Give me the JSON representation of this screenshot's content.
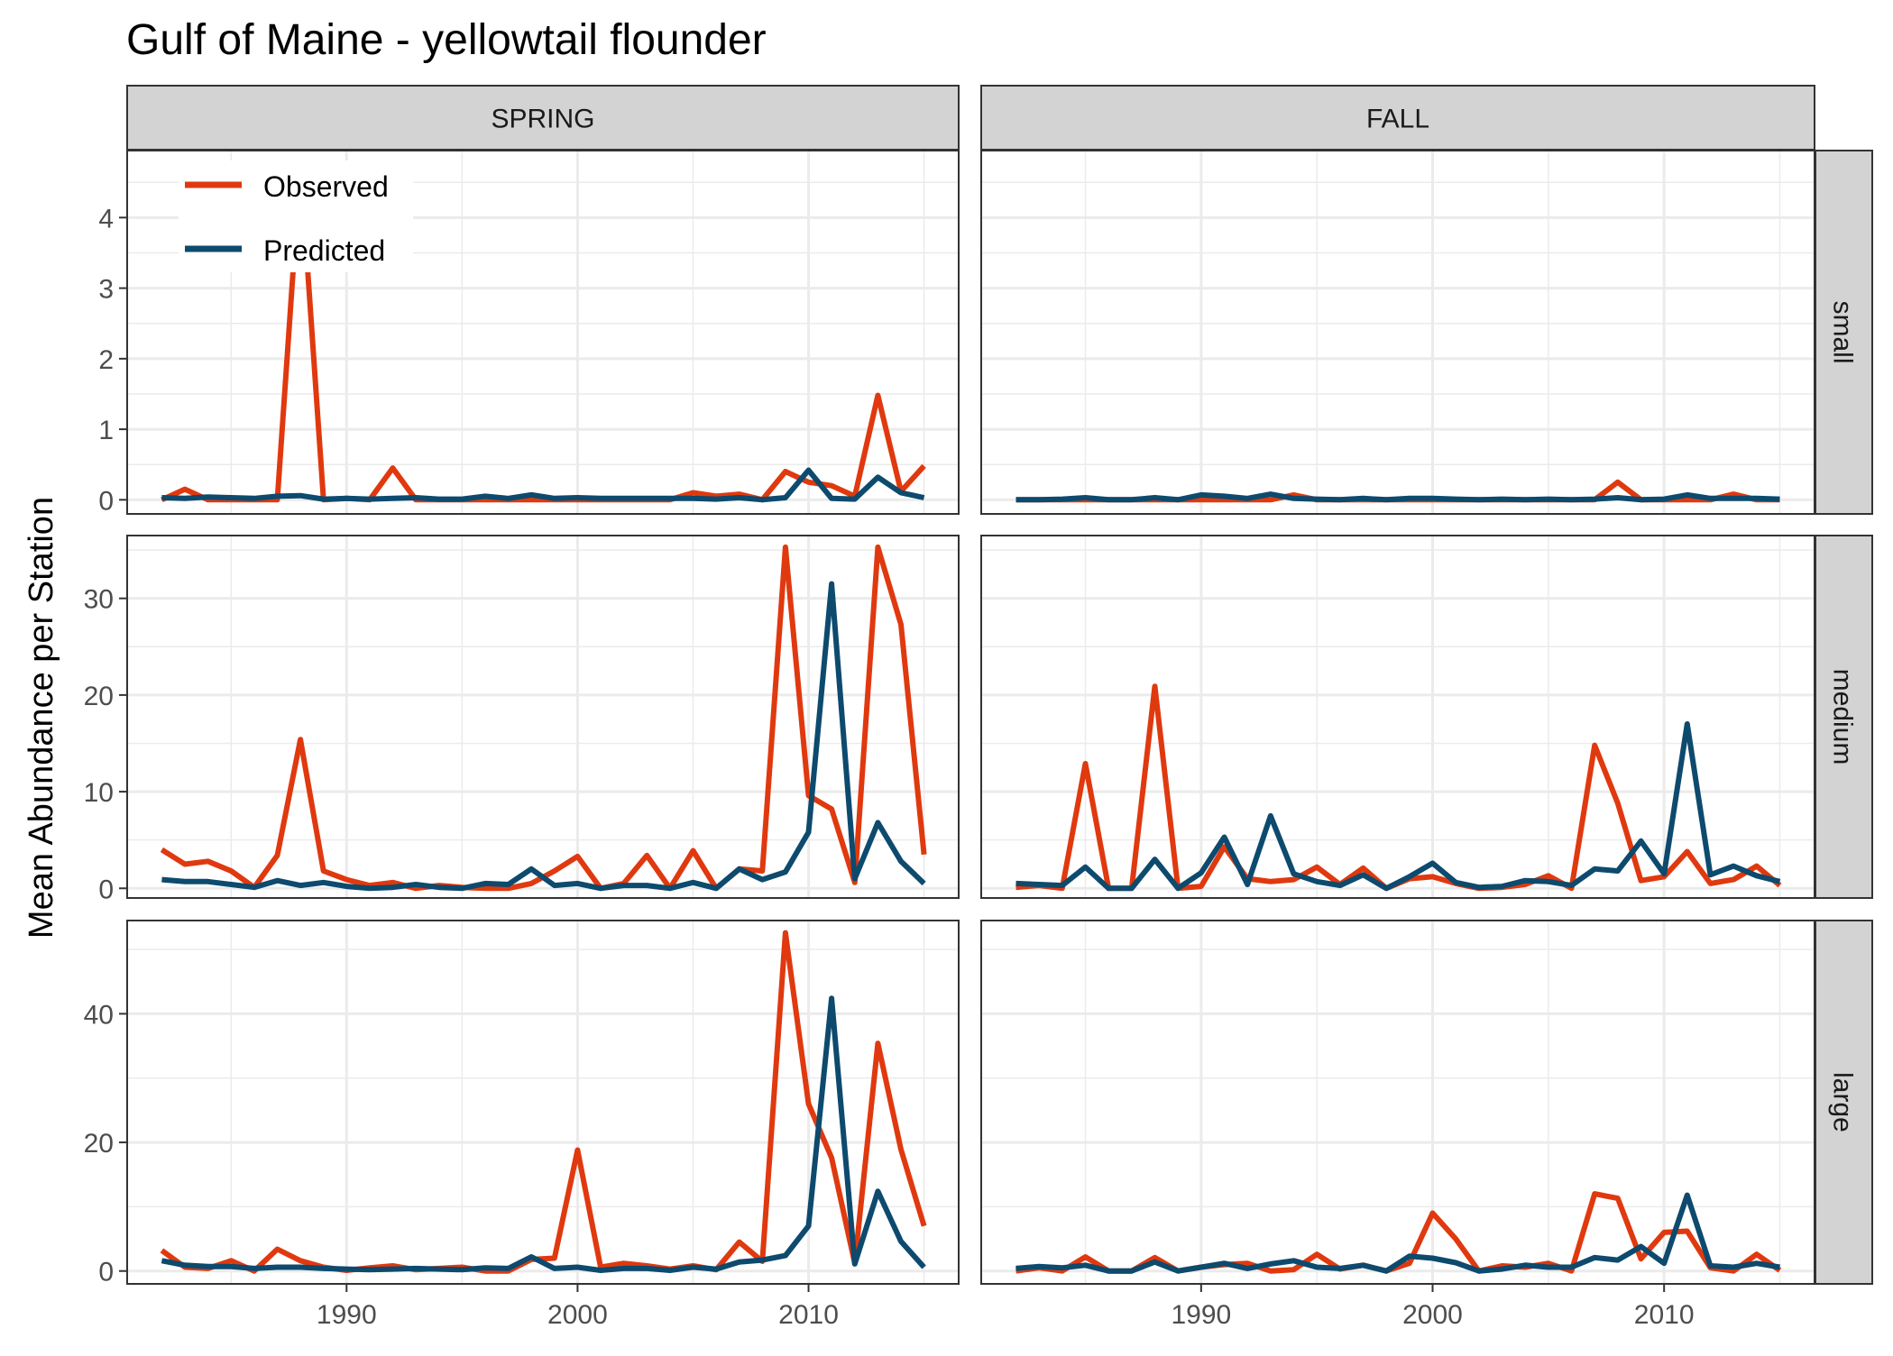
{
  "chart_data": {
    "type": "line",
    "title": "Gulf of Maine - yellowtail flounder",
    "ylabel": "Mean Abundance per Station",
    "xlabel": "",
    "x": [
      1982,
      1983,
      1984,
      1985,
      1986,
      1987,
      1988,
      1989,
      1990,
      1991,
      1992,
      1993,
      1994,
      1995,
      1996,
      1997,
      1998,
      1999,
      2000,
      2001,
      2002,
      2003,
      2004,
      2005,
      2006,
      2007,
      2008,
      2009,
      2010,
      2011,
      2012,
      2013,
      2014,
      2015
    ],
    "xlim": [
      1980.5,
      2016.5
    ],
    "xticks": [
      "1990",
      "2000",
      "2010"
    ],
    "columns": [
      "SPRING",
      "FALL"
    ],
    "rows": [
      "small",
      "medium",
      "large"
    ],
    "grid": true,
    "legend": {
      "position": "top-left inside",
      "entries": [
        "Observed",
        "Predicted"
      ]
    },
    "colors": {
      "Observed": "#e0390f",
      "Predicted": "#0d4a6e",
      "strip": "#d3d3d3",
      "grid": "#ebebeb"
    },
    "ylims": {
      "small": [
        -0.2,
        4.95
      ],
      "medium": [
        -1.0,
        36.5
      ],
      "large": [
        -2.0,
        54.5
      ]
    },
    "yticks": {
      "small": [
        "0",
        "1",
        "2",
        "3",
        "4"
      ],
      "medium": [
        "0",
        "10",
        "20",
        "30"
      ],
      "large": [
        "0",
        "20",
        "40"
      ]
    },
    "panels": [
      {
        "column": "SPRING",
        "row": "small",
        "series": [
          {
            "name": "Observed",
            "values": [
              0.0,
              0.15,
              0.0,
              0.0,
              0.0,
              0.0,
              4.75,
              0.0,
              0.02,
              0.0,
              0.45,
              0.0,
              0.0,
              0.0,
              0.0,
              0.0,
              0.0,
              0.0,
              0.0,
              0.0,
              0.0,
              0.0,
              0.0,
              0.1,
              0.05,
              0.08,
              0.0,
              0.4,
              0.25,
              0.2,
              0.05,
              1.48,
              0.12,
              0.48
            ]
          },
          {
            "name": "Predicted",
            "values": [
              0.03,
              0.02,
              0.04,
              0.03,
              0.02,
              0.05,
              0.06,
              0.01,
              0.02,
              0.01,
              0.02,
              0.03,
              0.01,
              0.01,
              0.05,
              0.02,
              0.07,
              0.02,
              0.03,
              0.02,
              0.02,
              0.02,
              0.02,
              0.02,
              0.01,
              0.03,
              0.0,
              0.03,
              0.42,
              0.02,
              0.01,
              0.32,
              0.1,
              0.03
            ]
          }
        ]
      },
      {
        "column": "FALL",
        "row": "small",
        "series": [
          {
            "name": "Observed",
            "values": [
              0.0,
              0.0,
              0.0,
              0.0,
              0.0,
              0.0,
              0.0,
              0.0,
              0.0,
              0.0,
              0.0,
              0.0,
              0.07,
              0.0,
              0.0,
              0.0,
              0.0,
              0.0,
              0.0,
              0.0,
              0.0,
              0.0,
              0.0,
              0.0,
              0.0,
              0.0,
              0.25,
              0.0,
              0.0,
              0.0,
              0.0,
              0.08,
              0.0,
              0.0
            ]
          },
          {
            "name": "Predicted",
            "values": [
              0.0,
              0.0,
              0.01,
              0.03,
              0.0,
              0.0,
              0.03,
              0.0,
              0.07,
              0.05,
              0.02,
              0.08,
              0.02,
              0.01,
              0.0,
              0.02,
              0.0,
              0.02,
              0.02,
              0.01,
              0.0,
              0.01,
              0.0,
              0.01,
              0.0,
              0.01,
              0.03,
              0.0,
              0.01,
              0.07,
              0.02,
              0.02,
              0.02,
              0.01
            ]
          }
        ]
      },
      {
        "column": "SPRING",
        "row": "medium",
        "series": [
          {
            "name": "Observed",
            "values": [
              4.0,
              2.5,
              2.8,
              1.8,
              0.1,
              3.4,
              15.4,
              1.8,
              0.9,
              0.3,
              0.6,
              0.0,
              0.3,
              0.1,
              0.0,
              0.0,
              0.5,
              1.8,
              3.3,
              0.0,
              0.5,
              3.4,
              0.0,
              3.9,
              0.0,
              2.0,
              1.8,
              35.3,
              9.6,
              8.2,
              0.6,
              35.3,
              27.3,
              3.5
            ]
          },
          {
            "name": "Predicted",
            "values": [
              0.9,
              0.7,
              0.7,
              0.4,
              0.1,
              0.8,
              0.3,
              0.6,
              0.2,
              0.0,
              0.1,
              0.4,
              0.1,
              0.0,
              0.5,
              0.4,
              2.0,
              0.3,
              0.5,
              0.0,
              0.3,
              0.3,
              0.0,
              0.6,
              0.0,
              2.0,
              0.9,
              1.7,
              5.8,
              31.5,
              1.0,
              6.8,
              2.8,
              0.5
            ]
          }
        ]
      },
      {
        "column": "FALL",
        "row": "medium",
        "series": [
          {
            "name": "Observed",
            "values": [
              0.1,
              0.3,
              0.0,
              12.9,
              0.0,
              0.0,
              20.9,
              0.0,
              0.2,
              4.3,
              1.0,
              0.7,
              0.9,
              2.2,
              0.4,
              2.1,
              0.0,
              1.0,
              1.2,
              0.5,
              0.0,
              0.1,
              0.4,
              1.3,
              0.0,
              14.8,
              8.8,
              0.8,
              1.2,
              3.8,
              0.5,
              0.9,
              2.3,
              0.3
            ]
          },
          {
            "name": "Predicted",
            "values": [
              0.5,
              0.4,
              0.3,
              2.2,
              0.0,
              0.0,
              3.0,
              0.0,
              1.6,
              5.3,
              0.4,
              7.5,
              1.5,
              0.7,
              0.3,
              1.4,
              0.0,
              1.2,
              2.6,
              0.6,
              0.1,
              0.2,
              0.8,
              0.7,
              0.3,
              2.0,
              1.8,
              4.9,
              1.5,
              17.0,
              1.4,
              2.3,
              1.3,
              0.7
            ]
          }
        ]
      },
      {
        "column": "SPRING",
        "row": "large",
        "series": [
          {
            "name": "Observed",
            "values": [
              3.2,
              0.6,
              0.4,
              1.6,
              0.0,
              3.4,
              1.6,
              0.6,
              0.1,
              0.5,
              0.8,
              0.2,
              0.4,
              0.6,
              0.0,
              0.0,
              1.8,
              2.0,
              18.8,
              0.6,
              1.2,
              0.8,
              0.3,
              0.8,
              0.2,
              4.5,
              1.5,
              52.6,
              26.0,
              17.6,
              1.2,
              35.4,
              18.9,
              7.0
            ]
          },
          {
            "name": "Predicted",
            "values": [
              1.6,
              0.9,
              0.7,
              0.7,
              0.4,
              0.6,
              0.6,
              0.4,
              0.3,
              0.2,
              0.3,
              0.4,
              0.3,
              0.2,
              0.5,
              0.4,
              2.2,
              0.4,
              0.6,
              0.1,
              0.4,
              0.4,
              0.1,
              0.6,
              0.3,
              1.4,
              1.7,
              2.4,
              7.0,
              42.4,
              1.1,
              12.4,
              4.6,
              0.6
            ]
          }
        ]
      },
      {
        "column": "FALL",
        "row": "large",
        "series": [
          {
            "name": "Observed",
            "values": [
              0.0,
              0.5,
              0.0,
              2.2,
              0.0,
              0.0,
              2.1,
              0.0,
              0.6,
              1.0,
              1.2,
              0.0,
              0.2,
              2.6,
              0.3,
              0.9,
              0.0,
              1.2,
              9.0,
              5.0,
              0.0,
              0.8,
              0.6,
              1.2,
              0.0,
              12.0,
              11.3,
              1.9,
              6.0,
              6.2,
              0.5,
              0.0,
              2.6,
              0.1
            ]
          },
          {
            "name": "Predicted",
            "values": [
              0.4,
              0.7,
              0.5,
              0.9,
              0.0,
              0.0,
              1.4,
              0.0,
              0.6,
              1.2,
              0.4,
              1.1,
              1.6,
              0.6,
              0.4,
              0.9,
              0.0,
              2.3,
              2.0,
              1.3,
              0.0,
              0.3,
              0.9,
              0.6,
              0.6,
              2.1,
              1.7,
              3.8,
              1.2,
              11.8,
              0.8,
              0.6,
              1.2,
              0.6
            ]
          }
        ]
      }
    ]
  }
}
